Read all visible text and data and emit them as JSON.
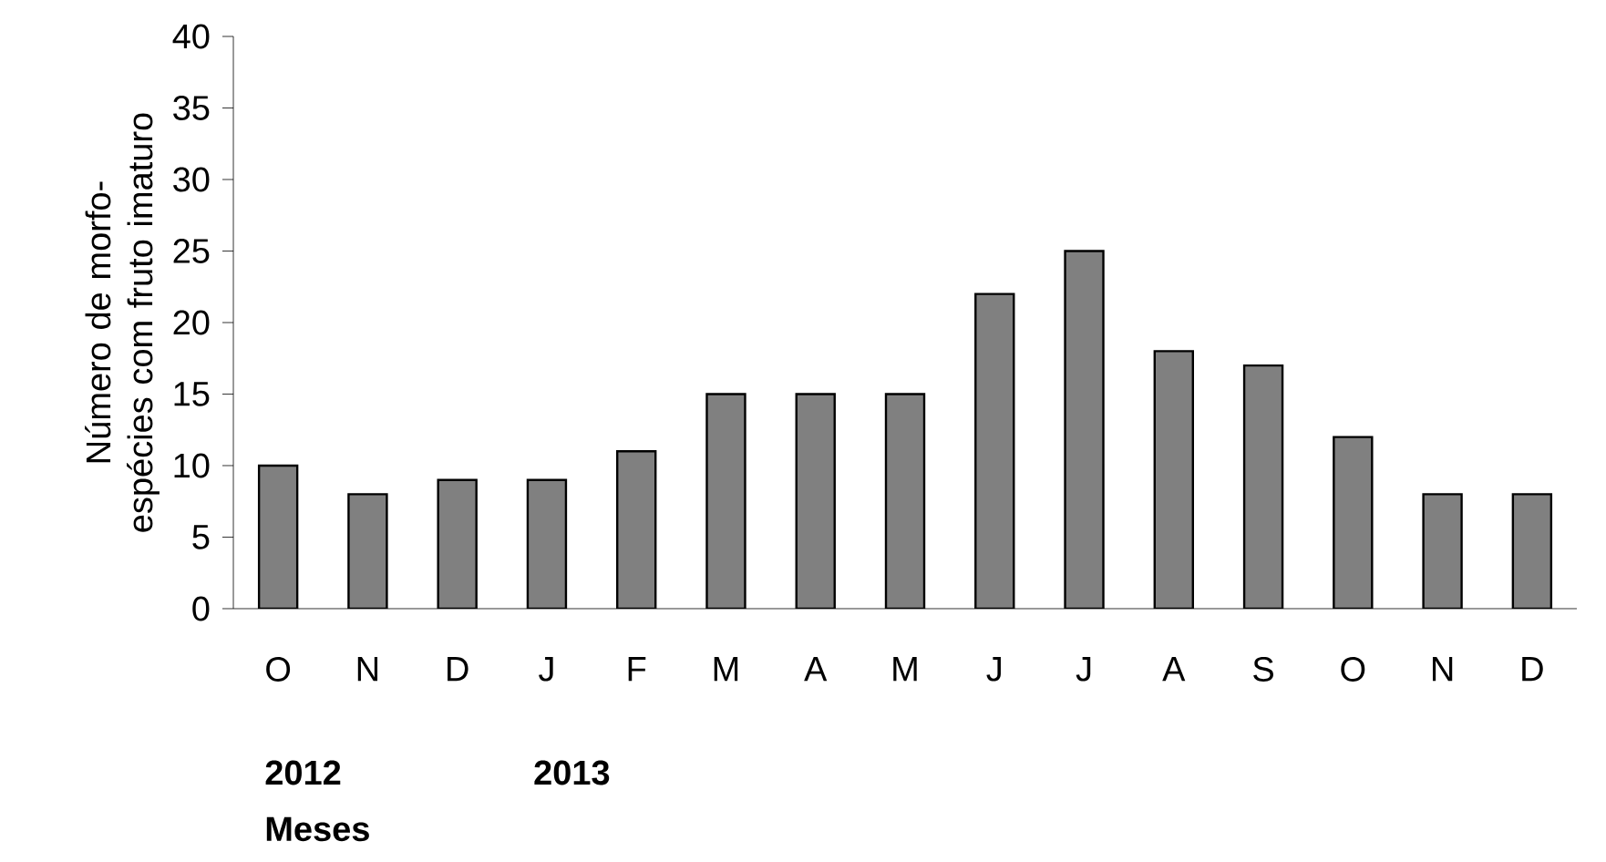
{
  "chart_data": {
    "type": "bar",
    "xlabel": "Meses",
    "ylabel": "Número de morfo-espécies com fruto imaturo",
    "categories": [
      "O",
      "N",
      "D",
      "J",
      "F",
      "M",
      "A",
      "M",
      "J",
      "J",
      "A",
      "S",
      "O",
      "N",
      "D"
    ],
    "values": [
      10,
      8,
      9,
      9,
      11,
      15,
      15,
      15,
      22,
      25,
      18,
      17,
      12,
      8,
      8
    ],
    "color": "#808080",
    "ylim": [
      0,
      40
    ],
    "yticks": [
      0,
      5,
      10,
      15,
      20,
      25,
      30,
      35,
      40
    ],
    "annotations": [
      "2012",
      "2013"
    ]
  }
}
